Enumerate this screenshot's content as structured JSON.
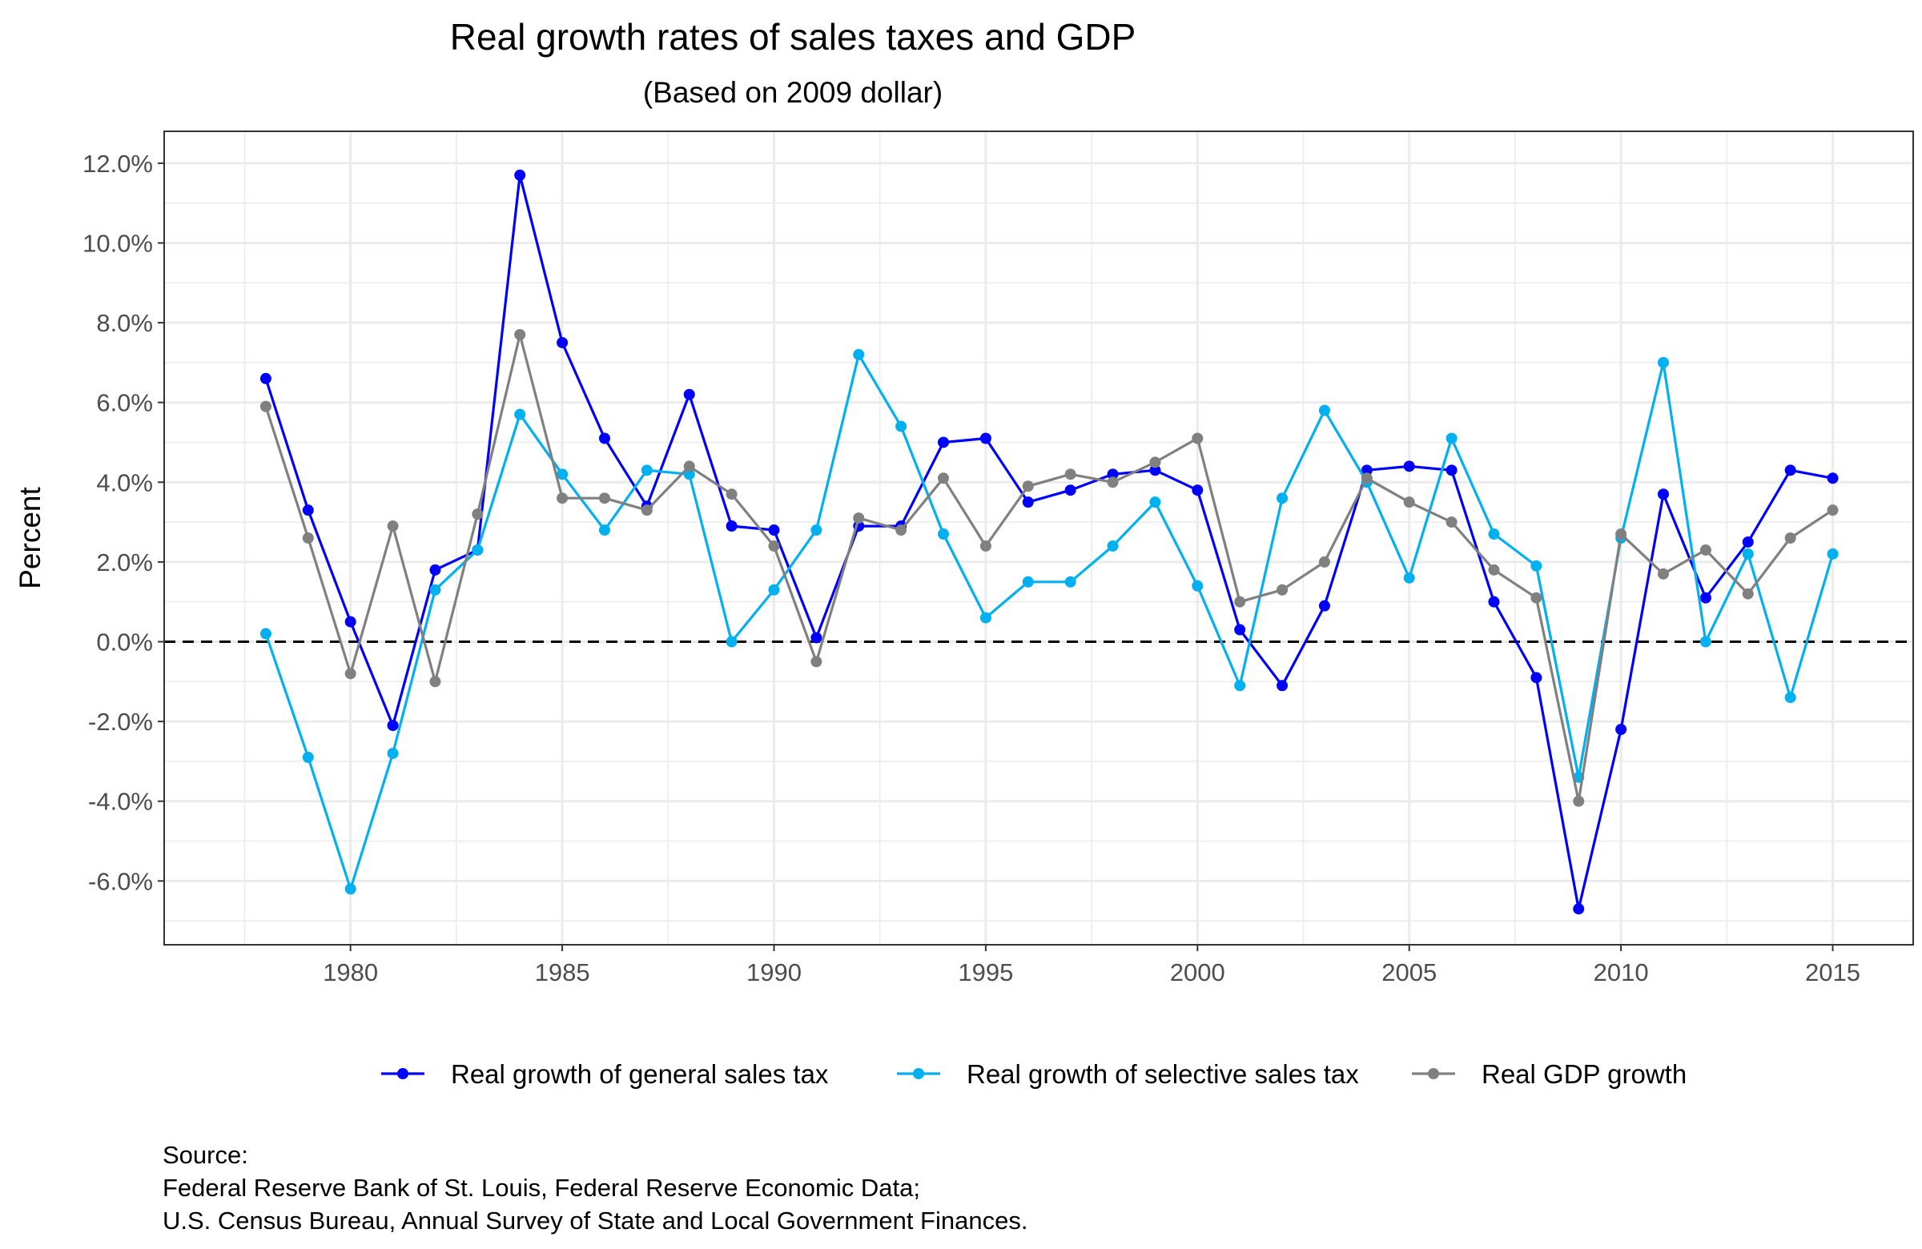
{
  "chart_data": {
    "type": "line",
    "title": "Real growth rates of sales taxes and GDP",
    "subtitle": "(Based on 2009 dollar)",
    "xlabel": "",
    "ylabel": "Percent",
    "x_ticks": [
      1980,
      1985,
      1990,
      1995,
      2000,
      2005,
      2010,
      2015
    ],
    "y_ticks": [
      "12.0%",
      "10.0%",
      "8.0%",
      "6.0%",
      "4.0%",
      "2.0%",
      "0.0%",
      "-2.0%",
      "-4.0%",
      "-6.0%"
    ],
    "y_tick_values": [
      12,
      10,
      8,
      6,
      4,
      2,
      0,
      -2,
      -4,
      -6
    ],
    "xlim": [
      1975.6,
      2016.9
    ],
    "ylim": [
      -7.6,
      12.8
    ],
    "grid": true,
    "reference_line": {
      "y": 0,
      "style": "dashed"
    },
    "legend_position": "bottom",
    "x": [
      1978,
      1979,
      1980,
      1981,
      1982,
      1983,
      1984,
      1985,
      1986,
      1987,
      1988,
      1989,
      1990,
      1991,
      1992,
      1993,
      1994,
      1995,
      1996,
      1997,
      1998,
      1999,
      2000,
      2001,
      2002,
      2003,
      2004,
      2005,
      2006,
      2007,
      2008,
      2009,
      2010,
      2011,
      2012,
      2013,
      2014,
      2015
    ],
    "series": [
      {
        "name": "Real growth of general sales tax",
        "color": "#0000ff",
        "values": [
          6.6,
          3.3,
          0.5,
          -2.1,
          1.8,
          2.3,
          11.7,
          7.5,
          5.1,
          3.4,
          6.2,
          2.9,
          2.8,
          0.1,
          2.9,
          2.9,
          5.0,
          5.1,
          3.5,
          3.8,
          4.2,
          4.3,
          3.8,
          0.3,
          -1.1,
          0.9,
          4.3,
          4.4,
          4.3,
          1.0,
          -0.9,
          -6.7,
          -2.2,
          3.7,
          1.1,
          2.5,
          4.3,
          4.1
        ]
      },
      {
        "name": "Real growth of selective sales tax",
        "color": "#00b0f0",
        "values": [
          0.2,
          -2.9,
          -6.2,
          -2.8,
          1.3,
          2.3,
          5.7,
          4.2,
          2.8,
          4.3,
          4.2,
          0.0,
          1.3,
          2.8,
          7.2,
          5.4,
          2.7,
          0.6,
          1.5,
          1.5,
          2.4,
          3.5,
          1.4,
          -1.1,
          3.6,
          5.8,
          4.0,
          1.6,
          5.1,
          2.7,
          1.9,
          -3.4,
          2.6,
          7.0,
          0.0,
          2.2,
          -1.4,
          2.2
        ]
      },
      {
        "name": "Real GDP growth",
        "color": "#808080",
        "values": [
          5.9,
          2.6,
          -0.8,
          2.9,
          -1.0,
          3.2,
          7.7,
          3.6,
          3.6,
          3.3,
          4.4,
          3.7,
          2.4,
          -0.5,
          3.1,
          2.8,
          4.1,
          2.4,
          3.9,
          4.2,
          4.0,
          4.5,
          5.1,
          1.0,
          1.3,
          2.0,
          4.1,
          3.5,
          3.0,
          1.8,
          1.1,
          -4.0,
          2.7,
          1.7,
          2.3,
          1.2,
          2.6,
          3.3
        ]
      }
    ],
    "caption": [
      "Source:",
      "Federal Reserve Bank of St. Louis, Federal Reserve Economic Data;",
      "U.S. Census Bureau, Annual Survey of State and Local Government Finances."
    ]
  }
}
